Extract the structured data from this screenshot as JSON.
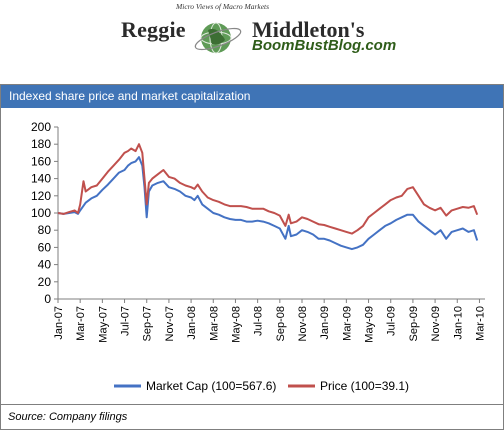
{
  "logo": {
    "name_first": "Reggie",
    "name_last": "Middleton's",
    "site": "BoomBustBlog.com",
    "tagline": "Micro Views of Macro Markets"
  },
  "header": {
    "title": "Indexed share price and market capitalization",
    "bar_color": "#3f74b6"
  },
  "source": "Source: Company filings",
  "chart_data": {
    "type": "line",
    "title": "",
    "xlabel": "",
    "ylabel": "",
    "ylim": [
      0,
      200
    ],
    "yticks": [
      0,
      20,
      40,
      60,
      80,
      100,
      120,
      140,
      160,
      180,
      200
    ],
    "x_tick_labels": [
      "Jan-07",
      "Mar-07",
      "May-07",
      "Jul-07",
      "Sep-07",
      "Nov-07",
      "Jan-08",
      "Mar-08",
      "May-08",
      "Jul-08",
      "Sep-08",
      "Nov-08",
      "Jan-09",
      "Mar-09",
      "May-09",
      "Jul-09",
      "Sep-09",
      "Nov-09",
      "Jan-10",
      "Mar-10"
    ],
    "x_range_months": [
      0,
      38.5
    ],
    "grid": false,
    "legend_position": "bottom",
    "series": [
      {
        "name": "Market Cap (100=567.6)",
        "color": "#4472c4",
        "points": [
          [
            0,
            100
          ],
          [
            0.5,
            99
          ],
          [
            1,
            100
          ],
          [
            1.5,
            101
          ],
          [
            1.8,
            99
          ],
          [
            2,
            103
          ],
          [
            2.5,
            112
          ],
          [
            3,
            117
          ],
          [
            3.5,
            120
          ],
          [
            4,
            127
          ],
          [
            4.5,
            133
          ],
          [
            5,
            140
          ],
          [
            5.5,
            147
          ],
          [
            6,
            150
          ],
          [
            6.3,
            155
          ],
          [
            6.6,
            158
          ],
          [
            7,
            160
          ],
          [
            7.3,
            165
          ],
          [
            7.6,
            155
          ],
          [
            7.8,
            130
          ],
          [
            8,
            95
          ],
          [
            8.2,
            125
          ],
          [
            8.5,
            132
          ],
          [
            9,
            135
          ],
          [
            9.5,
            137
          ],
          [
            10,
            130
          ],
          [
            10.5,
            128
          ],
          [
            11,
            125
          ],
          [
            11.5,
            120
          ],
          [
            12,
            118
          ],
          [
            12.3,
            115
          ],
          [
            12.6,
            120
          ],
          [
            13,
            110
          ],
          [
            13.5,
            105
          ],
          [
            14,
            100
          ],
          [
            14.5,
            98
          ],
          [
            15,
            95
          ],
          [
            15.5,
            93
          ],
          [
            16,
            92
          ],
          [
            16.5,
            92
          ],
          [
            17,
            90
          ],
          [
            17.5,
            90
          ],
          [
            18,
            91
          ],
          [
            18.5,
            90
          ],
          [
            19,
            88
          ],
          [
            19.5,
            85
          ],
          [
            20,
            82
          ],
          [
            20.5,
            70
          ],
          [
            20.8,
            85
          ],
          [
            21,
            73
          ],
          [
            21.5,
            75
          ],
          [
            22,
            80
          ],
          [
            22.5,
            78
          ],
          [
            23,
            75
          ],
          [
            23.5,
            70
          ],
          [
            24,
            70
          ],
          [
            24.5,
            68
          ],
          [
            25,
            65
          ],
          [
            25.5,
            62
          ],
          [
            26,
            60
          ],
          [
            26.5,
            58
          ],
          [
            27,
            60
          ],
          [
            27.5,
            63
          ],
          [
            28,
            70
          ],
          [
            28.5,
            75
          ],
          [
            29,
            80
          ],
          [
            29.5,
            85
          ],
          [
            30,
            88
          ],
          [
            30.5,
            92
          ],
          [
            31,
            95
          ],
          [
            31.5,
            98
          ],
          [
            32,
            98
          ],
          [
            32.5,
            90
          ],
          [
            33,
            85
          ],
          [
            33.5,
            80
          ],
          [
            34,
            75
          ],
          [
            34.5,
            80
          ],
          [
            35,
            70
          ],
          [
            35.5,
            78
          ],
          [
            36,
            80
          ],
          [
            36.5,
            82
          ],
          [
            37,
            78
          ],
          [
            37.5,
            80
          ],
          [
            37.8,
            68
          ]
        ]
      },
      {
        "name": "Price (100=39.1)",
        "color": "#c0504d",
        "points": [
          [
            0,
            100
          ],
          [
            0.5,
            99
          ],
          [
            1,
            101
          ],
          [
            1.5,
            103
          ],
          [
            1.8,
            100
          ],
          [
            2,
            110
          ],
          [
            2.3,
            137
          ],
          [
            2.5,
            125
          ],
          [
            3,
            130
          ],
          [
            3.5,
            132
          ],
          [
            4,
            140
          ],
          [
            4.5,
            148
          ],
          [
            5,
            155
          ],
          [
            5.5,
            162
          ],
          [
            6,
            170
          ],
          [
            6.3,
            172
          ],
          [
            6.6,
            175
          ],
          [
            7,
            172
          ],
          [
            7.3,
            180
          ],
          [
            7.6,
            170
          ],
          [
            7.8,
            140
          ],
          [
            8,
            110
          ],
          [
            8.2,
            135
          ],
          [
            8.5,
            140
          ],
          [
            9,
            145
          ],
          [
            9.5,
            150
          ],
          [
            10,
            142
          ],
          [
            10.5,
            140
          ],
          [
            11,
            135
          ],
          [
            11.5,
            132
          ],
          [
            12,
            130
          ],
          [
            12.3,
            128
          ],
          [
            12.6,
            133
          ],
          [
            13,
            125
          ],
          [
            13.5,
            118
          ],
          [
            14,
            115
          ],
          [
            14.5,
            113
          ],
          [
            15,
            110
          ],
          [
            15.5,
            108
          ],
          [
            16,
            108
          ],
          [
            16.5,
            108
          ],
          [
            17,
            107
          ],
          [
            17.5,
            105
          ],
          [
            18,
            105
          ],
          [
            18.5,
            105
          ],
          [
            19,
            102
          ],
          [
            19.5,
            100
          ],
          [
            20,
            97
          ],
          [
            20.5,
            85
          ],
          [
            20.8,
            98
          ],
          [
            21,
            88
          ],
          [
            21.5,
            90
          ],
          [
            22,
            95
          ],
          [
            22.5,
            93
          ],
          [
            23,
            90
          ],
          [
            23.5,
            87
          ],
          [
            24,
            86
          ],
          [
            24.5,
            84
          ],
          [
            25,
            82
          ],
          [
            25.5,
            80
          ],
          [
            26,
            78
          ],
          [
            26.5,
            76
          ],
          [
            27,
            80
          ],
          [
            27.5,
            85
          ],
          [
            28,
            95
          ],
          [
            28.5,
            100
          ],
          [
            29,
            105
          ],
          [
            29.5,
            110
          ],
          [
            30,
            115
          ],
          [
            30.5,
            118
          ],
          [
            31,
            120
          ],
          [
            31.5,
            128
          ],
          [
            32,
            130
          ],
          [
            32.5,
            120
          ],
          [
            33,
            110
          ],
          [
            33.5,
            106
          ],
          [
            34,
            103
          ],
          [
            34.5,
            106
          ],
          [
            35,
            97
          ],
          [
            35.5,
            103
          ],
          [
            36,
            105
          ],
          [
            36.5,
            107
          ],
          [
            37,
            106
          ],
          [
            37.5,
            108
          ],
          [
            37.8,
            98
          ]
        ]
      }
    ]
  }
}
